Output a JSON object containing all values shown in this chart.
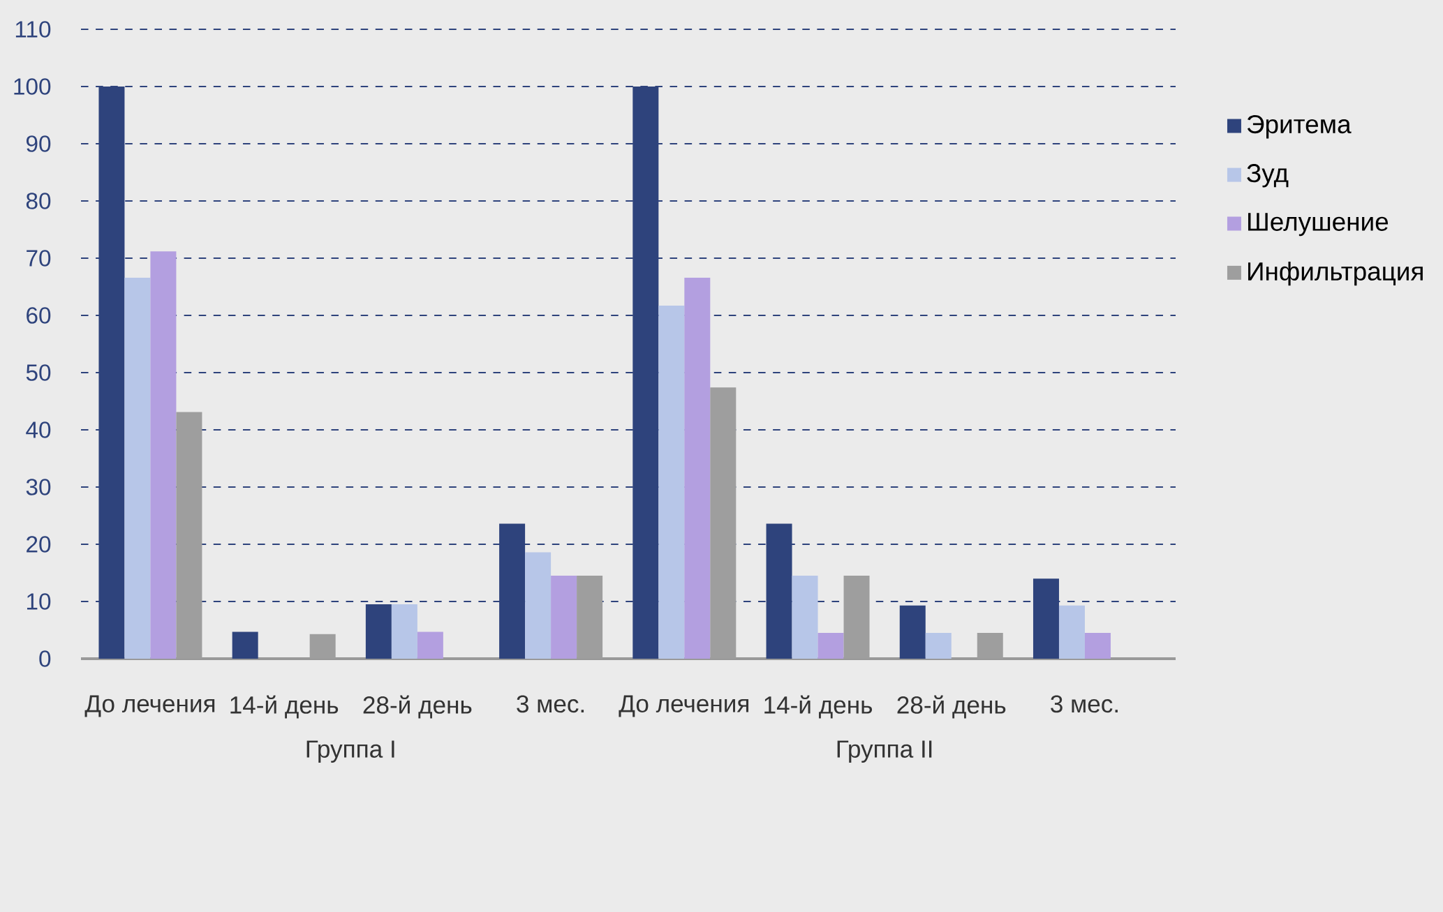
{
  "chart_data": {
    "type": "bar",
    "categories": [
      "До лечения",
      "14-й день",
      "28-й день",
      "3 мес.",
      "До лечения",
      "14-й день",
      "28-й день",
      "3 мес."
    ],
    "series": [
      {
        "name": "Эритема",
        "color": "#2e437c",
        "values": [
          100,
          4.7,
          9.5,
          23.6,
          100,
          23.6,
          9.3,
          14
        ]
      },
      {
        "name": "Зуд",
        "color": "#b7c6e8",
        "values": [
          66.6,
          0,
          9.5,
          18.6,
          61.7,
          14.5,
          4.5,
          9.3
        ]
      },
      {
        "name": "Шелушение",
        "color": "#b39fe0",
        "values": [
          71.2,
          0,
          4.7,
          14.5,
          66.6,
          4.5,
          0,
          4.5
        ]
      },
      {
        "name": "Инфильтрация",
        "color": "#9e9e9e",
        "values": [
          43.1,
          4.3,
          0,
          14.5,
          47.4,
          14.5,
          4.5,
          0
        ]
      }
    ],
    "annotations": [
      "Группа I",
      "Группа II"
    ],
    "ylim": [
      0,
      110
    ],
    "yticks": [
      0,
      10,
      20,
      30,
      40,
      50,
      60,
      70,
      80,
      90,
      100,
      110
    ],
    "grid": "y",
    "legend": "right",
    "marker": "square"
  }
}
